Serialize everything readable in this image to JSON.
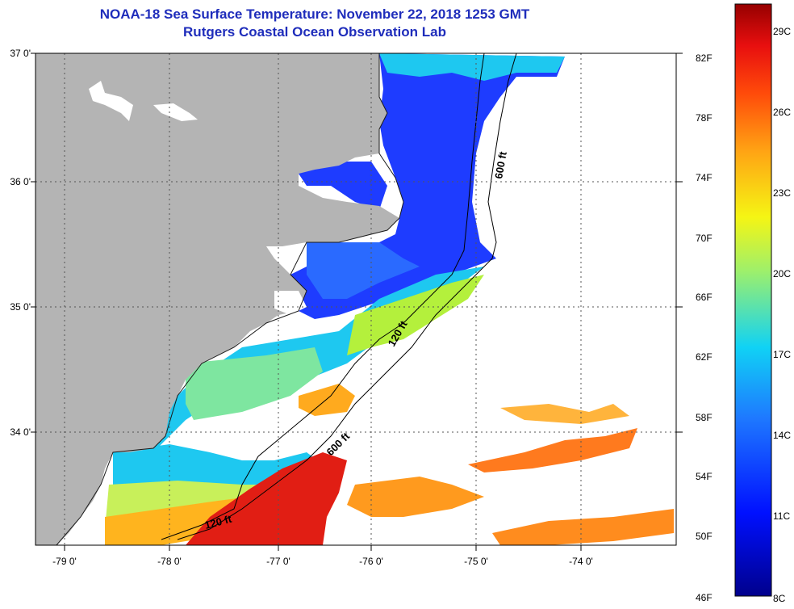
{
  "title_line1": "NOAA-18 Sea Surface Temperature:  November 22, 2018 1253 GMT",
  "title_line2": "Rutgers Coastal Ocean Observation Lab",
  "lat_labels": [
    "37 0'",
    "36 0'",
    "35 0'",
    "34 0'"
  ],
  "lon_labels": [
    "-79 0'",
    "-78 0'",
    "-77 0'",
    "-76 0'",
    "-75 0'",
    "-74 0'"
  ],
  "colorbar_f": [
    "82F",
    "78F",
    "74F",
    "70F",
    "66F",
    "62F",
    "58F",
    "54F",
    "50F",
    "46F"
  ],
  "colorbar_c": [
    "29C",
    "26C",
    "23C",
    "20C",
    "17C",
    "14C",
    "11C",
    "8C"
  ],
  "isobaths": [
    "600 ft",
    "120 ft",
    "600 ft",
    "120 ft"
  ],
  "colors": {
    "land": "#b4b4b4",
    "title": "#1f2dbb",
    "cold": "#1e3cff",
    "cool": "#1ec8f0",
    "mid": "#b4f03c",
    "warm": "#ffaa1e",
    "hot": "#e11e14"
  }
}
